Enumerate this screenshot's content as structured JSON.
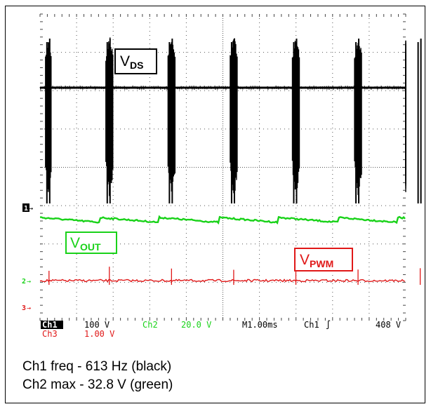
{
  "colors": {
    "ch1": "#000000",
    "ch2": "#19d219",
    "ch3": "#e01818",
    "grid": "#555555"
  },
  "chart_data": {
    "type": "line",
    "title": "",
    "grid": true,
    "series": [
      {
        "name": "VDS",
        "channel": "Ch1",
        "color": "#000000",
        "burst_times_ms": [
          0.15,
          1.8,
          3.5,
          5.2,
          6.9,
          8.6,
          10.3
        ]
      },
      {
        "name": "VOUT",
        "channel": "Ch2",
        "color": "#19d219"
      },
      {
        "name": "VPWM",
        "channel": "Ch3",
        "color": "#e01818"
      }
    ],
    "annotations": [
      "VDS",
      "VOUT",
      "VPWM"
    ]
  },
  "labels": {
    "vds": {
      "main": "V",
      "sub": "DS"
    },
    "vout": {
      "main": "V",
      "sub": "OUT"
    },
    "vpwm": {
      "main": "V",
      "sub": "PWM"
    }
  },
  "markers": {
    "ch1": "1",
    "ch2": "2",
    "ch3": "3"
  },
  "readout": {
    "ch1": "Ch1",
    "ch1_scale": "100 V",
    "ch2": "Ch2",
    "ch2_scale": "20.0 V",
    "timebase": "M1.00ms",
    "trigger_src": "Ch1",
    "trigger_slope": "∫",
    "trigger_level": "408 V",
    "ch3": "Ch3",
    "ch3_scale": "1.00 V"
  },
  "caption": {
    "line1": "Ch1 freq - 613 Hz (black)",
    "line2": "Ch2 max - 32.8 V (green)"
  }
}
